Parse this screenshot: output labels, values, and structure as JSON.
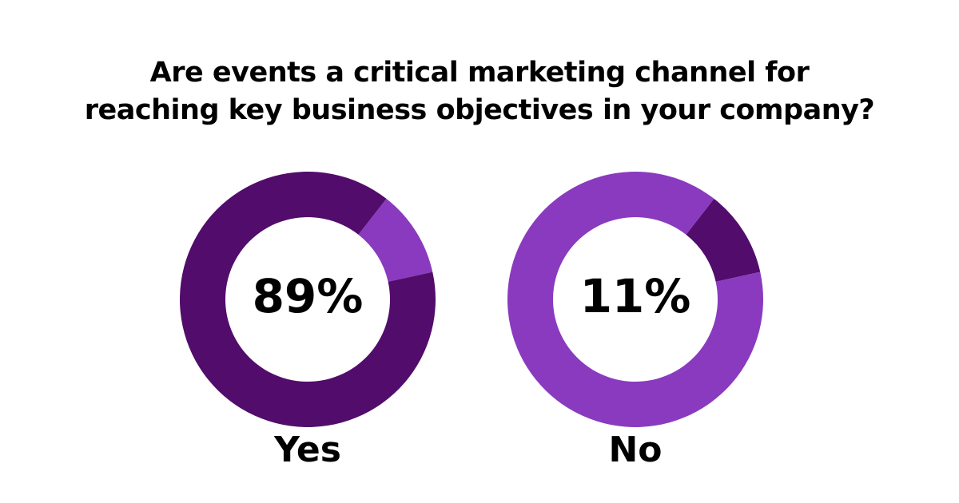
{
  "title": "Are events a critical marketing channel for reaching key business objectives in your company?",
  "chart_data": [
    {
      "type": "donut",
      "label": "Yes",
      "values": [
        11,
        89
      ],
      "value_labels": [
        null,
        "89%"
      ],
      "colors": [
        "#8a3abf",
        "#520c6b"
      ]
    },
    {
      "type": "donut",
      "label": "No",
      "values": [
        11,
        89
      ],
      "value_labels": [
        "11%",
        null
      ],
      "colors": [
        "#520c6b",
        "#8a3abf"
      ]
    }
  ]
}
